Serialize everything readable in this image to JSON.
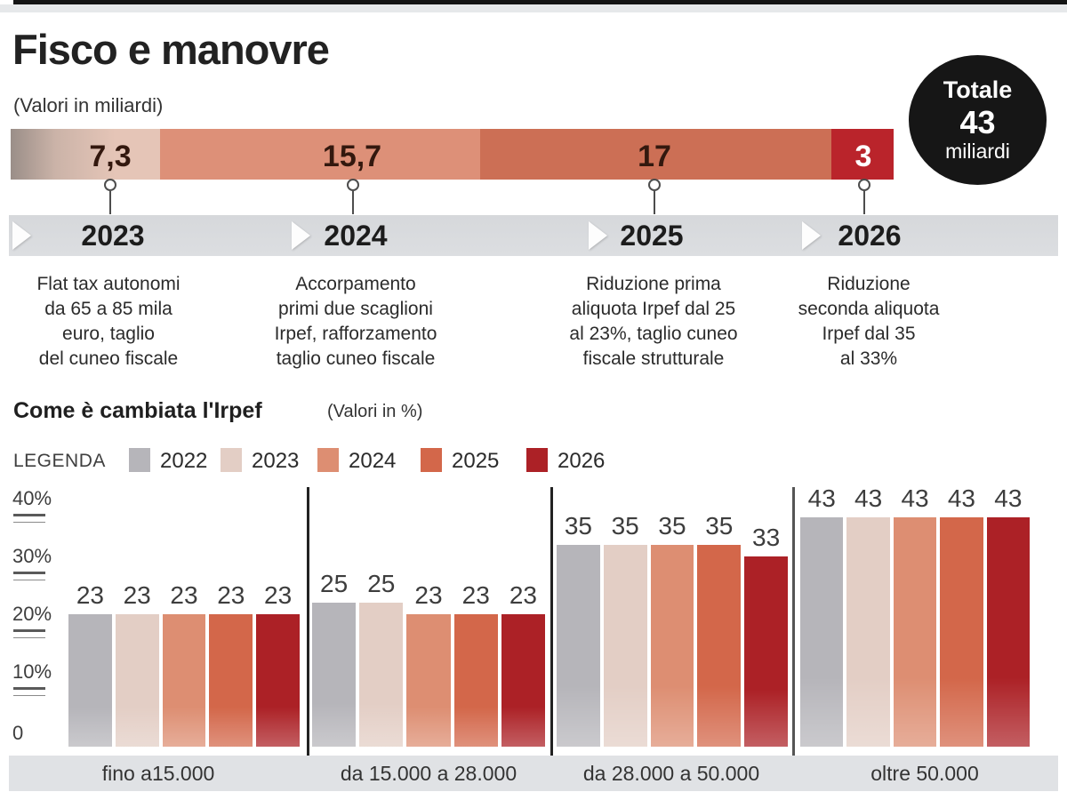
{
  "page": {
    "title": "Fisco e manovre",
    "subtitle": "(Valori in miliardi)"
  },
  "stacked_bar": {
    "unit": "miliardi",
    "segments": [
      {
        "value": "7,3",
        "color_start": "#9a8e88",
        "color_end": "#e5c5b7"
      },
      {
        "value": "15,7",
        "color": "#dd9078"
      },
      {
        "value": "17",
        "color": "#cc6f55"
      },
      {
        "value": "3",
        "color": "#ba242b"
      }
    ],
    "total": {
      "label": "Totale",
      "value": "43",
      "unit": "miliardi",
      "badge_color": "#161616"
    }
  },
  "timeline": [
    {
      "year": "2023",
      "description": "Flat tax autonomi\nda 65 a 85 mila\neuro, taglio\ndel cuneo fiscale"
    },
    {
      "year": "2024",
      "description": "Accorpamento\nprimi due scaglioni\nIrpef, rafforzamento\ntaglio cuneo fiscale"
    },
    {
      "year": "2025",
      "description": "Riduzione prima\naliquota Irpef dal 25\nal 23%, taglio cuneo\nfiscale strutturale"
    },
    {
      "year": "2026",
      "description": "Riduzione\nseconda aliquota\nIrpef dal 35\nal 33%"
    }
  ],
  "irpef_section": {
    "title": "Come è cambiata l'Irpef",
    "subtitle": "(Valori in %)",
    "legend_label": "LEGENDA"
  },
  "chart_data": {
    "type": "bar",
    "title": "Come è cambiata l'Irpef",
    "unit": "%",
    "ylim": [
      0,
      45
    ],
    "grid": false,
    "legend_position": "top",
    "y_ticks": [
      "40%",
      "30%",
      "20%",
      "10%",
      "0"
    ],
    "categories": [
      "fino a15.000",
      "da 15.000 a 28.000",
      "da 28.000 a 50.000",
      "oltre 50.000"
    ],
    "series": [
      {
        "name": "2022",
        "color": "#b6b5ba",
        "values": [
          23,
          25,
          35,
          43
        ]
      },
      {
        "name": "2023",
        "color": "#e3cec5",
        "values": [
          23,
          25,
          35,
          43
        ]
      },
      {
        "name": "2024",
        "color": "#dd8e72",
        "values": [
          23,
          23,
          35,
          43
        ]
      },
      {
        "name": "2025",
        "color": "#d3674a",
        "values": [
          23,
          23,
          35,
          43
        ]
      },
      {
        "name": "2026",
        "color": "#ac2126",
        "values": [
          23,
          23,
          33,
          43
        ]
      }
    ]
  }
}
